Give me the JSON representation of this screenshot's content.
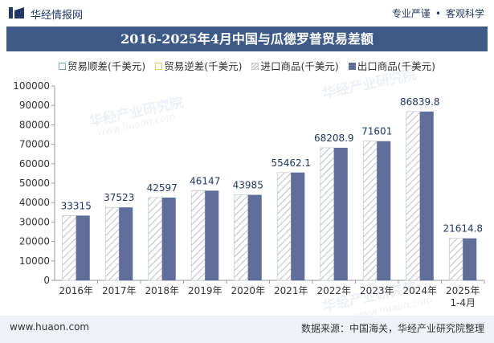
{
  "header": {
    "site_name": "华经情报网",
    "tagline_left": "专业严谨",
    "tagline_right": "客观科学"
  },
  "chart_data": {
    "type": "bar",
    "title": "2016-2025年4月中国与瓜德罗普贸易差额",
    "categories": [
      "2016年",
      "2017年",
      "2018年",
      "2019年",
      "2020年",
      "2021年",
      "2022年",
      "2023年",
      "2024年",
      "2025年\n1-4月"
    ],
    "series": [
      {
        "name": "贸易顺差(千美元)",
        "values": [
          33315,
          37523,
          42597,
          46147,
          43985,
          55462.1,
          68208.9,
          71601,
          86839.8,
          21614.8
        ],
        "color": "#ffffff",
        "border": "#7aa7d6"
      },
      {
        "name": "贸易逆差(千美元)",
        "values": [
          0,
          0,
          0,
          0,
          0,
          0,
          0,
          0,
          0,
          0
        ],
        "color": "#ffffff",
        "border": "#e8c96a"
      },
      {
        "name": "进口商品(千美元)",
        "values": [
          0,
          0,
          0,
          0,
          0,
          0,
          0,
          0,
          0,
          0
        ],
        "color": "#c9c9c9"
      },
      {
        "name": "出口商品(千美元)",
        "values": [
          33315,
          37523,
          42597,
          46147,
          43985,
          55462.1,
          68208.9,
          71601,
          86839.8,
          21614.8
        ],
        "color": "#5f6f9a"
      }
    ],
    "data_labels": [
      "33315",
      "37523",
      "42597",
      "46147",
      "43985",
      "55462.1",
      "68208.9",
      "71601",
      "86839.8",
      "21614.8"
    ],
    "ylim": [
      0,
      100000
    ],
    "yticks": [
      0,
      10000,
      20000,
      30000,
      40000,
      50000,
      60000,
      70000,
      80000,
      90000,
      100000
    ],
    "grid": false,
    "legend_position": "top"
  },
  "footer": {
    "url": "www.huaon.com",
    "source": "数据来源：中国海关，华经产业研究院整理"
  },
  "watermark": {
    "text": "华经产业研究院",
    "url": "www.huaon.com"
  }
}
